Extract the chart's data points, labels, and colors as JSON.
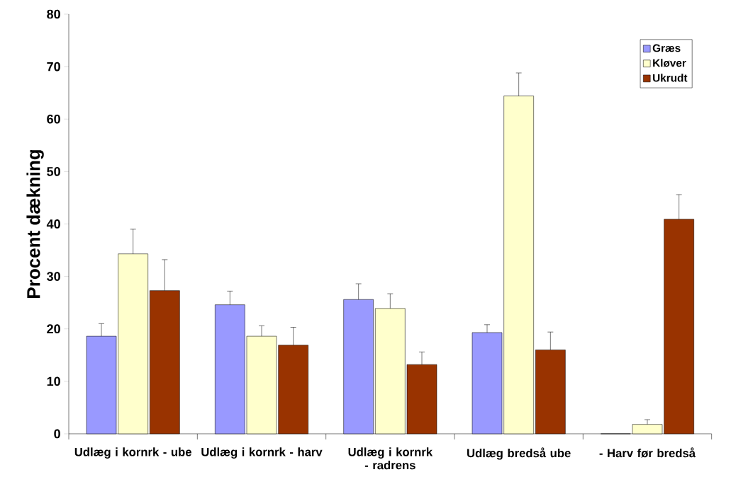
{
  "chart_data": {
    "type": "bar",
    "ylabel": "Procent dækning",
    "categories": [
      "Udlæg i kornrk - ube",
      "Udlæg i kornrk - harv",
      "Udlæg i kornrk - radrens",
      "Udlæg bredså ube",
      "- Harv før bredså"
    ],
    "series": [
      {
        "name": "Græs",
        "color": "#9999ff",
        "values": [
          18.6,
          24.6,
          25.6,
          19.3,
          0
        ],
        "errors": [
          2.4,
          2.6,
          3.0,
          1.5,
          null
        ]
      },
      {
        "name": "Kløver",
        "color": "#ffffcc",
        "values": [
          34.3,
          18.6,
          23.9,
          64.4,
          1.8
        ],
        "errors": [
          4.7,
          2.0,
          2.8,
          4.4,
          0.9
        ]
      },
      {
        "name": "Ukrudt",
        "color": "#993300",
        "values": [
          27.3,
          16.9,
          13.2,
          16.0,
          40.9
        ],
        "errors": [
          5.9,
          3.4,
          2.4,
          3.4,
          4.7
        ]
      }
    ],
    "ylim": [
      0,
      80
    ],
    "yticks": [
      0,
      10,
      20,
      30,
      40,
      50,
      60,
      70,
      80
    ],
    "grid": false,
    "legend": "top right"
  }
}
